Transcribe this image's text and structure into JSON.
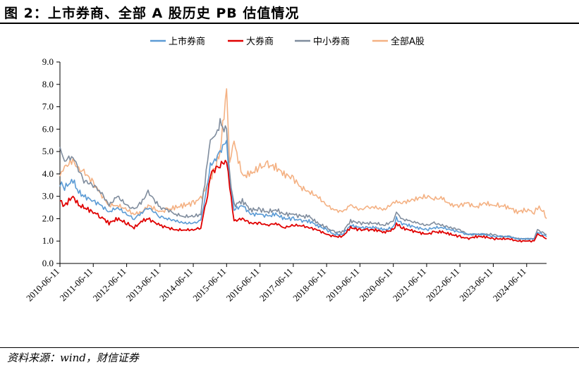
{
  "figure": {
    "title": "图 2：上市券商、全部 A 股历史 PB 估值情况",
    "source": "资料来源：wind，财信证券"
  },
  "colors": {
    "上市券商": "#5B9BD5",
    "大券商": "#E00000",
    "中小券商": "#7F8C9D",
    "全部A股": "#F4B183"
  },
  "chart_data": {
    "type": "line",
    "title": "",
    "xlabel": "",
    "ylabel": "",
    "ylim": [
      0,
      9
    ],
    "yticks": [
      "0.0",
      "1.0",
      "2.0",
      "3.0",
      "4.0",
      "5.0",
      "6.0",
      "7.0",
      "8.0",
      "9.0"
    ],
    "xticks": [
      "2010-06-11",
      "2011-06-11",
      "2012-06-11",
      "2013-06-11",
      "2014-06-11",
      "2015-06-11",
      "2016-06-11",
      "2017-06-11",
      "2018-06-11",
      "2019-06-11",
      "2020-06-11",
      "2021-06-11",
      "2022-06-11",
      "2023-06-11",
      "2024-06-11"
    ],
    "legend_position": "top-center",
    "grid": false,
    "x": [
      "2010-06-11",
      "2010-08-01",
      "2010-11-01",
      "2011-01-01",
      "2011-03-01",
      "2011-06-11",
      "2011-09-01",
      "2011-12-01",
      "2012-03-01",
      "2012-06-11",
      "2012-09-01",
      "2012-12-01",
      "2013-02-01",
      "2013-06-11",
      "2013-09-01",
      "2013-12-01",
      "2014-03-01",
      "2014-06-11",
      "2014-09-01",
      "2014-11-15",
      "2014-12-15",
      "2015-02-01",
      "2015-04-01",
      "2015-06-11",
      "2015-07-15",
      "2015-09-01",
      "2015-12-01",
      "2016-03-01",
      "2016-06-11",
      "2016-09-01",
      "2016-12-01",
      "2017-03-01",
      "2017-06-11",
      "2017-09-01",
      "2017-12-01",
      "2018-03-01",
      "2018-06-11",
      "2018-09-01",
      "2018-12-01",
      "2019-03-01",
      "2019-06-11",
      "2019-09-01",
      "2019-12-01",
      "2020-03-01",
      "2020-06-11",
      "2020-07-15",
      "2020-09-01",
      "2020-12-01",
      "2021-03-01",
      "2021-06-11",
      "2021-09-01",
      "2021-12-01",
      "2022-03-01",
      "2022-06-11",
      "2022-09-01",
      "2022-12-01",
      "2023-03-01",
      "2023-06-11",
      "2023-09-01",
      "2023-12-01",
      "2024-03-01",
      "2024-06-11",
      "2024-09-01",
      "2024-10-08",
      "2024-12-01",
      "2025-01-15"
    ],
    "series": [
      {
        "name": "上市券商",
        "values": [
          3.6,
          3.4,
          3.7,
          3.2,
          3.0,
          2.8,
          2.6,
          2.3,
          2.5,
          2.2,
          2.0,
          2.3,
          2.5,
          2.1,
          2.0,
          1.9,
          1.8,
          1.8,
          1.9,
          3.5,
          4.4,
          4.6,
          5.0,
          5.5,
          3.6,
          2.4,
          2.6,
          2.2,
          2.2,
          2.1,
          2.2,
          2.0,
          2.0,
          1.9,
          1.9,
          1.7,
          1.5,
          1.3,
          1.3,
          1.7,
          1.6,
          1.6,
          1.6,
          1.5,
          1.6,
          2.0,
          1.8,
          1.7,
          1.6,
          1.5,
          1.6,
          1.6,
          1.5,
          1.4,
          1.3,
          1.3,
          1.3,
          1.2,
          1.2,
          1.2,
          1.1,
          1.1,
          1.1,
          1.4,
          1.3,
          1.2
        ]
      },
      {
        "name": "大券商",
        "values": [
          2.8,
          2.6,
          3.0,
          2.6,
          2.5,
          2.3,
          2.1,
          1.8,
          2.0,
          1.8,
          1.6,
          1.9,
          2.0,
          1.7,
          1.6,
          1.5,
          1.5,
          1.5,
          1.6,
          3.1,
          4.0,
          4.2,
          4.4,
          4.6,
          3.4,
          1.9,
          2.0,
          1.8,
          1.8,
          1.7,
          1.8,
          1.6,
          1.7,
          1.7,
          1.6,
          1.5,
          1.3,
          1.2,
          1.2,
          1.6,
          1.5,
          1.5,
          1.5,
          1.4,
          1.5,
          1.8,
          1.6,
          1.5,
          1.4,
          1.3,
          1.4,
          1.4,
          1.3,
          1.2,
          1.1,
          1.2,
          1.2,
          1.1,
          1.1,
          1.1,
          1.0,
          1.0,
          1.0,
          1.3,
          1.2,
          1.1
        ]
      },
      {
        "name": "中小券商",
        "values": [
          5.2,
          4.6,
          4.8,
          4.2,
          3.7,
          3.5,
          3.2,
          2.6,
          3.0,
          2.6,
          2.4,
          2.8,
          3.2,
          2.5,
          2.4,
          2.2,
          2.1,
          2.1,
          2.2,
          4.6,
          5.5,
          5.6,
          6.3,
          5.8,
          3.9,
          2.6,
          2.8,
          2.4,
          2.4,
          2.3,
          2.4,
          2.2,
          2.2,
          2.1,
          2.1,
          1.8,
          1.6,
          1.4,
          1.4,
          1.9,
          1.8,
          1.8,
          1.8,
          1.7,
          1.9,
          2.3,
          2.0,
          1.9,
          1.8,
          1.7,
          1.8,
          1.7,
          1.6,
          1.5,
          1.3,
          1.3,
          1.3,
          1.3,
          1.2,
          1.2,
          1.1,
          1.1,
          1.1,
          1.5,
          1.4,
          1.3
        ]
      },
      {
        "name": "全部A股",
        "values": [
          3.9,
          4.3,
          4.6,
          4.2,
          4.1,
          3.6,
          3.1,
          2.6,
          2.6,
          2.4,
          2.2,
          2.3,
          2.6,
          2.3,
          2.4,
          2.5,
          2.6,
          2.7,
          2.9,
          3.5,
          3.8,
          4.2,
          5.0,
          7.8,
          4.5,
          5.4,
          3.9,
          4.0,
          4.3,
          4.4,
          4.3,
          4.0,
          3.8,
          3.4,
          3.2,
          3.0,
          2.6,
          2.4,
          2.3,
          2.6,
          2.4,
          2.5,
          2.5,
          2.4,
          2.7,
          2.8,
          2.7,
          2.8,
          2.9,
          3.0,
          2.9,
          2.9,
          2.6,
          2.6,
          2.7,
          2.5,
          2.7,
          2.6,
          2.6,
          2.5,
          2.3,
          2.4,
          2.3,
          2.5,
          2.4,
          2.0
        ]
      }
    ]
  }
}
